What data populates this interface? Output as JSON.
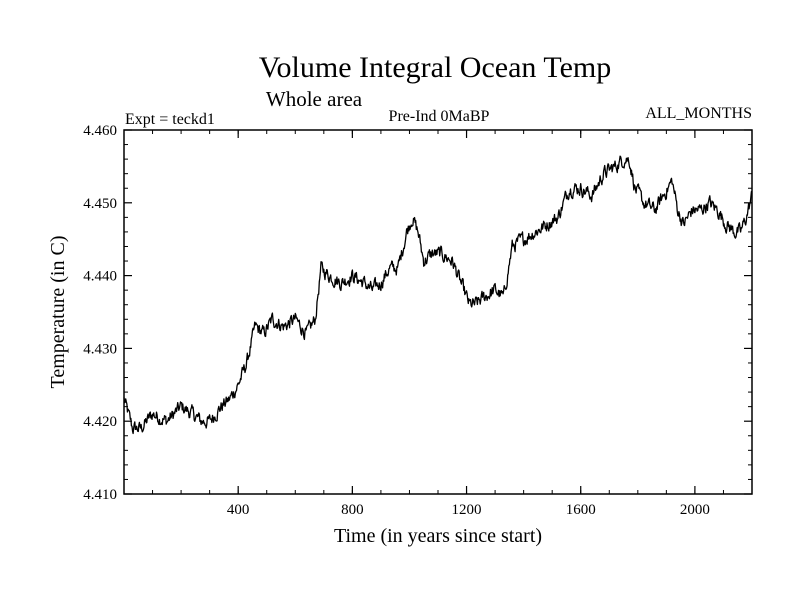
{
  "chart_data": {
    "type": "line",
    "title": "Volume Integral Ocean Temp",
    "subtitle": "Whole area",
    "left_label": "Expt = teckd1",
    "center_label": "Pre-Ind 0MaBP",
    "right_label": "ALL_MONTHS",
    "xlabel": "Time (in years since start)",
    "ylabel": "Temperature (in C)",
    "xlim": [
      0,
      2200
    ],
    "ylim": [
      4.41,
      4.46
    ],
    "xticks": [
      "400",
      "800",
      "1200",
      "1600",
      "2000"
    ],
    "yticks": [
      "4.410",
      "4.420",
      "4.430",
      "4.440",
      "4.450",
      "4.460"
    ],
    "series": [
      {
        "name": "teckd1",
        "x": [
          0,
          30,
          60,
          100,
          150,
          200,
          240,
          270,
          300,
          340,
          370,
          400,
          430,
          460,
          490,
          520,
          560,
          600,
          640,
          670,
          690,
          720,
          760,
          800,
          840,
          870,
          900,
          930,
          960,
          990,
          1010,
          1030,
          1050,
          1080,
          1110,
          1150,
          1180,
          1210,
          1230,
          1260,
          1300,
          1330,
          1360,
          1400,
          1440,
          1480,
          1520,
          1560,
          1600,
          1640,
          1680,
          1720,
          1750,
          1770,
          1790,
          1820,
          1860,
          1890,
          1920,
          1940,
          1960,
          1990,
          2020,
          2050,
          2080,
          2110,
          2140,
          2160,
          2180,
          2200
        ],
        "y": [
          4.423,
          4.419,
          4.419,
          4.421,
          4.42,
          4.422,
          4.421,
          4.42,
          4.42,
          4.422,
          4.423,
          4.425,
          4.428,
          4.433,
          4.432,
          4.434,
          4.433,
          4.434,
          4.432,
          4.434,
          4.441,
          4.44,
          4.439,
          4.44,
          4.439,
          4.438,
          4.439,
          4.441,
          4.441,
          4.446,
          4.448,
          4.446,
          4.442,
          4.443,
          4.443,
          4.442,
          4.439,
          4.436,
          4.436,
          4.437,
          4.438,
          4.437,
          4.444,
          4.445,
          4.446,
          4.447,
          4.448,
          4.452,
          4.452,
          4.451,
          4.454,
          4.455,
          4.456,
          4.456,
          4.452,
          4.45,
          4.449,
          4.451,
          4.453,
          4.449,
          4.447,
          4.449,
          4.449,
          4.45,
          4.449,
          4.447,
          4.446,
          4.446,
          4.448,
          4.451
        ]
      }
    ]
  }
}
